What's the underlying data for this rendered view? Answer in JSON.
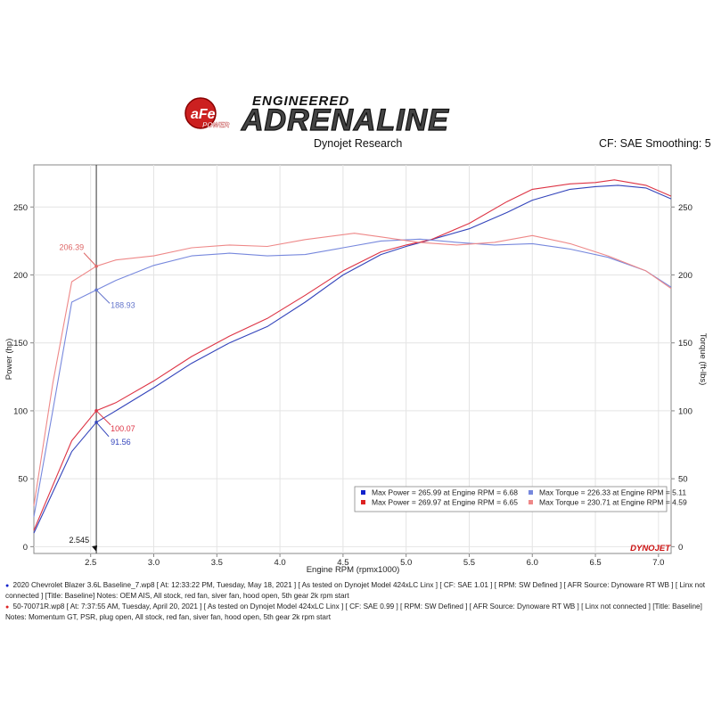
{
  "header": {
    "logo_brand": "aFe POWER",
    "logo_top": "ENGINEERED",
    "logo_main": "ADRENALINE",
    "subtitle": "Dynojet Research",
    "cf_smoothing": "CF: SAE Smoothing: 5",
    "watermark": "DYNOJET"
  },
  "chart_data": {
    "type": "line",
    "xlabel": "Engine RPM (rpmx1000)",
    "ylabel_left": "Power (hp)",
    "ylabel_right": "Torque (ft-lbs)",
    "xlim": [
      2.05,
      7.1
    ],
    "ylim": [
      -5,
      281
    ],
    "x_ticks": [
      2.5,
      3.0,
      3.5,
      4.0,
      4.5,
      5.0,
      5.5,
      6.0,
      6.5,
      7.0
    ],
    "x_tick_labels": [
      "2.5",
      "3.0",
      "3.5",
      "4.0",
      "4.5",
      "5.0",
      "5.5",
      "6.0",
      "6.5",
      "7.0"
    ],
    "y_ticks": [
      0,
      50,
      100,
      150,
      200,
      250
    ],
    "y_tick_labels": [
      "0",
      "50",
      "100",
      "150",
      "200",
      "250"
    ],
    "grid": true,
    "cursor": {
      "x": 2.545,
      "label": "2.545"
    },
    "series": [
      {
        "kind": "power",
        "color": "#3344bb",
        "x": [
          2.05,
          2.2,
          2.35,
          2.545,
          2.7,
          3.0,
          3.3,
          3.6,
          3.9,
          4.2,
          4.5,
          4.8,
          5.0,
          5.2,
          5.5,
          5.8,
          6.0,
          6.3,
          6.5,
          6.68,
          6.9,
          7.1
        ],
        "y": [
          10,
          40,
          70,
          91.56,
          100,
          117,
          135,
          150,
          162,
          180,
          200,
          215,
          221,
          226,
          234,
          246,
          255,
          263,
          265,
          265.99,
          264,
          256
        ]
      },
      {
        "kind": "power",
        "color": "#dd3344",
        "x": [
          2.05,
          2.2,
          2.35,
          2.545,
          2.7,
          3.0,
          3.3,
          3.6,
          3.9,
          4.2,
          4.5,
          4.8,
          5.0,
          5.2,
          5.5,
          5.8,
          6.0,
          6.3,
          6.5,
          6.65,
          6.9,
          7.1
        ],
        "y": [
          12,
          45,
          78,
          100.07,
          106,
          122,
          140,
          155,
          168,
          185,
          203,
          217,
          222,
          226,
          238,
          254,
          263,
          267,
          268,
          269.97,
          266,
          258
        ]
      },
      {
        "kind": "torque",
        "color": "#7788dd",
        "x": [
          2.05,
          2.2,
          2.35,
          2.545,
          2.7,
          3.0,
          3.3,
          3.6,
          3.9,
          4.2,
          4.5,
          4.8,
          5.11,
          5.4,
          5.7,
          6.0,
          6.3,
          6.6,
          6.9,
          7.1
        ],
        "y": [
          22,
          100,
          180,
          188.93,
          196,
          207,
          214,
          216,
          214,
          215,
          220,
          225,
          226.33,
          224,
          222,
          223,
          219,
          213,
          203,
          191
        ]
      },
      {
        "kind": "torque",
        "color": "#ee8888",
        "x": [
          2.05,
          2.2,
          2.35,
          2.545,
          2.7,
          3.0,
          3.3,
          3.6,
          3.9,
          4.2,
          4.59,
          4.8,
          5.1,
          5.4,
          5.7,
          6.0,
          6.3,
          6.6,
          6.9,
          7.1
        ],
        "y": [
          30,
          120,
          195,
          206.39,
          211,
          214,
          220,
          222,
          221,
          226,
          230.71,
          228,
          224,
          222,
          224,
          229,
          223,
          214,
          203,
          190
        ]
      }
    ],
    "annotations": [
      {
        "text": "206.39",
        "color": "#dd6666",
        "x": 2.545,
        "y": 206.39,
        "side": "left"
      },
      {
        "text": "188.93",
        "color": "#6677cc",
        "x": 2.545,
        "y": 188.93,
        "side": "right"
      },
      {
        "text": "100.07",
        "color": "#dd3344",
        "x": 2.545,
        "y": 100.07,
        "side": "right"
      },
      {
        "text": "91.56",
        "color": "#3344bb",
        "x": 2.545,
        "y": 91.56,
        "side": "right"
      }
    ],
    "legend": {
      "placement": "bottom-right",
      "entries": [
        {
          "text": "Max Power = 265.99 at Engine RPM = 6.68",
          "color": "#1122cc"
        },
        {
          "text": "Max Torque = 226.33 at Engine RPM = 5.11",
          "color": "#7788dd"
        },
        {
          "text": "Max Power = 269.97 at Engine RPM = 6.65",
          "color": "#dd2222"
        },
        {
          "text": "Max Torque = 230.71 at Engine RPM = 4.59",
          "color": "#ee8888"
        }
      ]
    }
  },
  "footer": {
    "run1": "2020 Chevrolet Blazer 3.6L Baseline_7.wp8 [ At: 12:33:22 PM, Tuesday, May 18, 2021 ] [ As tested on Dynojet Model 424xLC Linx ] [ CF: SAE 1.01 ] [ RPM: SW Defined ] [ AFR Source: Dynoware RT WB ] [ Linx not connected ] [Title: Baseline]  Notes: OEM AIS, All stock, red fan, siver fan, hood open, 5th gear 2k rpm start",
    "run1_color": "#1122cc",
    "run2": "50-70071R.wp8 [ At: 7:37:55 AM, Tuesday, April 20, 2021 ] [ As tested on Dynojet Model 424xLC Linx ] [ CF: SAE 0.99 ] [ RPM: SW Defined ] [ AFR Source: Dynoware RT WB ] [ Linx not connected ] [Title: Baseline]  Notes: Momentum GT, PSR, plug open, All stock, red fan, siver fan, hood open, 5th gear 2k rpm start",
    "run2_color": "#dd2222"
  }
}
